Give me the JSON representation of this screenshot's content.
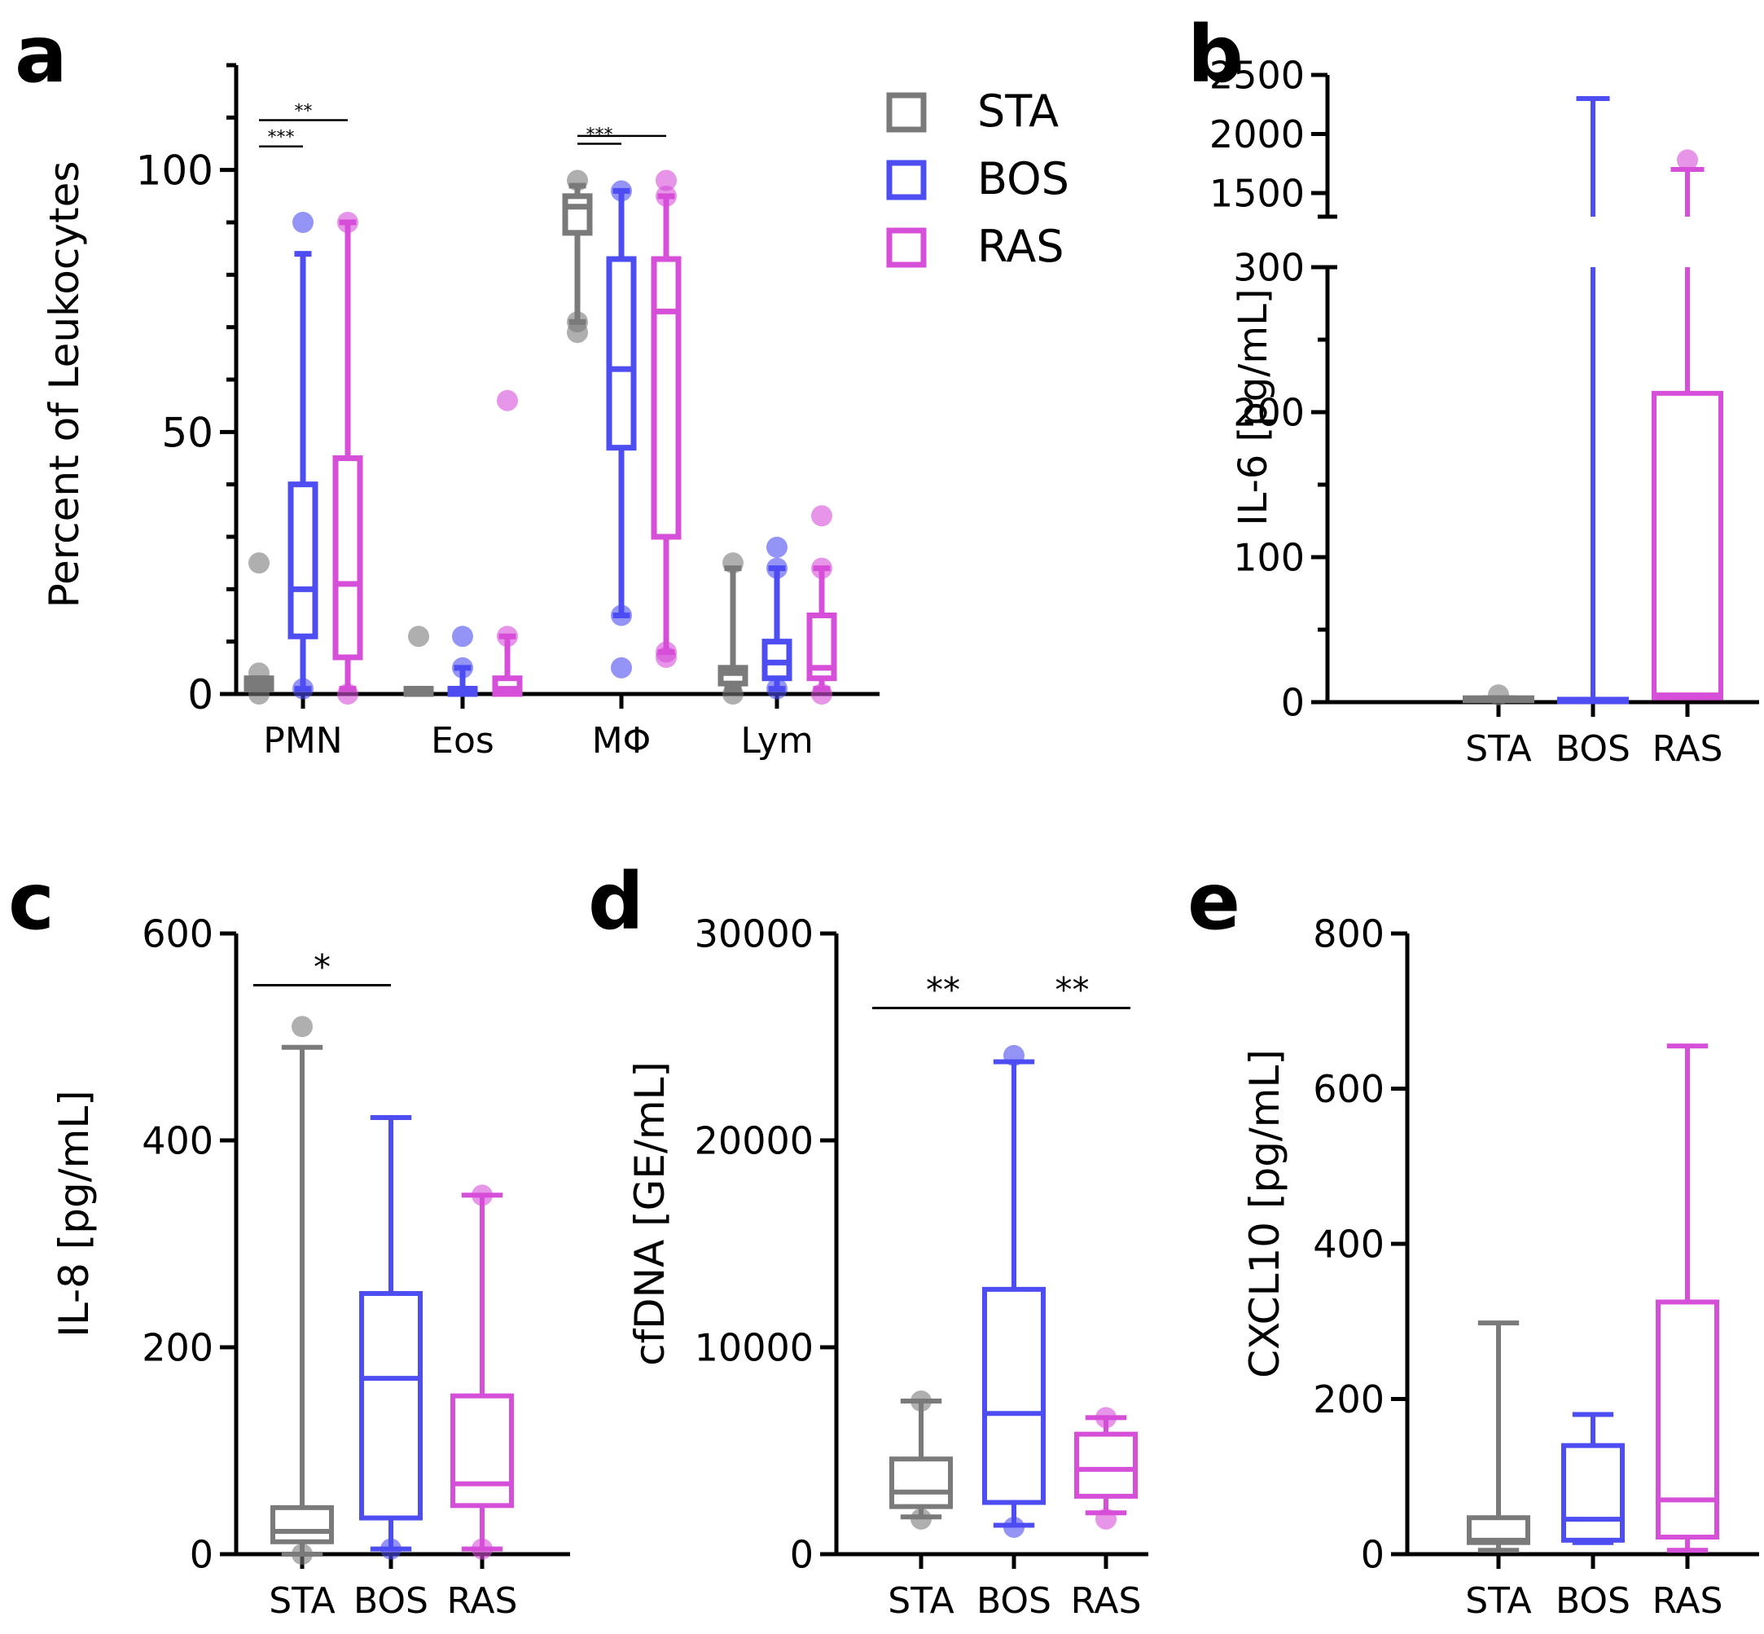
{
  "colors": {
    "STA": "#7a7a7a",
    "BOS": "#4d4df2",
    "RAS": "#d64fd8",
    "axis": "#000000"
  },
  "legend": {
    "entries": [
      {
        "name": "STA",
        "color": "#7a7a7a"
      },
      {
        "name": "BOS",
        "color": "#4d4df2"
      },
      {
        "name": "RAS",
        "color": "#d64fd8"
      }
    ]
  },
  "chart_data": [
    {
      "id": "a",
      "panel_label": "a",
      "type": "box",
      "ylabel": "Percent of Leukocytes",
      "ylim": [
        0,
        120
      ],
      "yticks": [
        0,
        50,
        100
      ],
      "ytick_labels": [
        "0",
        "50",
        "100"
      ],
      "categories": [
        "PMN",
        "Eos",
        "MΦ",
        "Lym"
      ],
      "groups": [
        "STA",
        "BOS",
        "RAS"
      ],
      "boxes": [
        {
          "category": "PMN",
          "group": "STA",
          "wlo": 1,
          "q1": 1,
          "med": 2,
          "q3": 3,
          "whi": 3,
          "outliers": [
            25,
            4,
            0
          ]
        },
        {
          "category": "PMN",
          "group": "BOS",
          "wlo": 1,
          "q1": 11,
          "med": 20,
          "q3": 40,
          "whi": 84,
          "outliers": [
            90,
            1
          ]
        },
        {
          "category": "PMN",
          "group": "RAS",
          "wlo": 1,
          "q1": 7,
          "med": 21,
          "q3": 45,
          "whi": 90,
          "outliers": [
            90,
            0
          ]
        },
        {
          "category": "Eos",
          "group": "STA",
          "wlo": 0,
          "q1": 0,
          "med": 0.5,
          "q3": 1,
          "whi": 1,
          "outliers": [
            11
          ]
        },
        {
          "category": "Eos",
          "group": "BOS",
          "wlo": 0,
          "q1": 0,
          "med": 1,
          "q3": 1,
          "whi": 5,
          "outliers": [
            11,
            5
          ]
        },
        {
          "category": "Eos",
          "group": "RAS",
          "wlo": 0,
          "q1": 0,
          "med": 1,
          "q3": 3,
          "whi": 11,
          "outliers": [
            56,
            11
          ]
        },
        {
          "category": "MΦ",
          "group": "STA",
          "wlo": 71,
          "q1": 88,
          "med": 93,
          "q3": 95,
          "whi": 97,
          "outliers": [
            98,
            71,
            69
          ]
        },
        {
          "category": "MΦ",
          "group": "BOS",
          "wlo": 15,
          "q1": 47,
          "med": 62,
          "q3": 83,
          "whi": 96,
          "outliers": [
            96,
            15,
            5
          ]
        },
        {
          "category": "MΦ",
          "group": "RAS",
          "wlo": 8,
          "q1": 30,
          "med": 73,
          "q3": 83,
          "whi": 95,
          "outliers": [
            98,
            95,
            8,
            7
          ]
        },
        {
          "category": "Lym",
          "group": "STA",
          "wlo": 1,
          "q1": 2,
          "med": 4,
          "q3": 5,
          "whi": 24,
          "outliers": [
            25,
            0
          ]
        },
        {
          "category": "Lym",
          "group": "BOS",
          "wlo": 1,
          "q1": 3,
          "med": 6,
          "q3": 10,
          "whi": 24,
          "outliers": [
            28,
            24,
            1
          ]
        },
        {
          "category": "Lym",
          "group": "RAS",
          "wlo": 1,
          "q1": 3,
          "med": 5,
          "q3": 15,
          "whi": 24,
          "outliers": [
            34,
            24,
            0
          ]
        }
      ],
      "significance": [
        {
          "category": "PMN",
          "from": "STA",
          "to": "BOS",
          "label": "***",
          "y": 104.5
        },
        {
          "category": "PMN",
          "from": "STA",
          "to": "RAS",
          "label": "**",
          "y": 109.5
        },
        {
          "category": "MΦ",
          "from": "STA",
          "to": "BOS",
          "label": "***",
          "y": 105
        },
        {
          "category": "MΦ",
          "from": "STA",
          "to": "RAS",
          "label": "",
          "y": 106.5
        }
      ]
    },
    {
      "id": "b",
      "panel_label": "b",
      "type": "box",
      "ylabel": "IL-6 [pg/mL]",
      "broken_axis": true,
      "ylim_lower": [
        0,
        300
      ],
      "ylim_upper": [
        1300,
        2500
      ],
      "yticks": [
        0,
        100,
        200,
        300,
        1500,
        2000,
        2500
      ],
      "ytick_labels": [
        "0",
        "100",
        "200",
        "300",
        "1500",
        "2000",
        "2500"
      ],
      "categories": [
        "STA",
        "BOS",
        "RAS"
      ],
      "boxes": [
        {
          "group": "STA",
          "wlo": 1,
          "q1": 1,
          "med": 2,
          "q3": 3,
          "whi": 3,
          "outliers": [
            5
          ]
        },
        {
          "group": "BOS",
          "wlo": 0,
          "q1": 1,
          "med": 2,
          "q3": 2,
          "whi": 2300,
          "outliers": []
        },
        {
          "group": "RAS",
          "wlo": 2,
          "q1": 3,
          "med": 5,
          "q3": 213,
          "whi": 1700,
          "outliers": [
            1780
          ]
        }
      ],
      "significance": []
    },
    {
      "id": "c",
      "panel_label": "c",
      "type": "box",
      "ylabel": "IL-8 [pg/mL]",
      "ylim": [
        0,
        600
      ],
      "yticks": [
        0,
        200,
        400,
        600
      ],
      "ytick_labels": [
        "0",
        "200",
        "400",
        "600"
      ],
      "categories": [
        "STA",
        "BOS",
        "RAS"
      ],
      "boxes": [
        {
          "group": "STA",
          "wlo": 0,
          "q1": 12,
          "med": 22,
          "q3": 45,
          "whi": 490,
          "outliers": [
            510,
            0
          ]
        },
        {
          "group": "BOS",
          "wlo": 5,
          "q1": 35,
          "med": 170,
          "q3": 252,
          "whi": 422,
          "outliers": [
            5
          ]
        },
        {
          "group": "RAS",
          "wlo": 5,
          "q1": 47,
          "med": 68,
          "q3": 153,
          "whi": 347,
          "outliers": [
            347,
            5
          ]
        }
      ],
      "significance": [
        {
          "from": "STA",
          "to": "BOS",
          "label": "*",
          "y": 550
        }
      ]
    },
    {
      "id": "d",
      "panel_label": "d",
      "type": "box",
      "ylabel": "cfDNA [GE/mL]",
      "ylim": [
        0,
        30000
      ],
      "yticks": [
        0,
        10000,
        20000,
        30000
      ],
      "ytick_labels": [
        "0",
        "10000",
        "20000",
        "30000"
      ],
      "categories": [
        "STA",
        "BOS",
        "RAS"
      ],
      "boxes": [
        {
          "group": "STA",
          "wlo": 1800,
          "q1": 2300,
          "med": 3000,
          "q3": 4600,
          "whi": 7400,
          "outliers": [
            7400,
            1700
          ]
        },
        {
          "group": "BOS",
          "wlo": 1400,
          "q1": 2500,
          "med": 6800,
          "q3": 12800,
          "whi": 23800,
          "outliers": [
            24100,
            1300
          ]
        },
        {
          "group": "RAS",
          "wlo": 2000,
          "q1": 2800,
          "med": 4100,
          "q3": 5800,
          "whi": 6600,
          "outliers": [
            6600,
            1700
          ]
        }
      ],
      "significance": [
        {
          "from": "STA",
          "to": "BOS",
          "label": "**",
          "y": 26400
        },
        {
          "from": "BOS",
          "to": "RAS",
          "label": "**",
          "y": 26400
        }
      ]
    },
    {
      "id": "e",
      "panel_label": "e",
      "type": "box",
      "ylabel": "CXCL10 [pg/mL]",
      "ylim": [
        0,
        800
      ],
      "yticks": [
        0,
        200,
        400,
        600,
        800
      ],
      "ytick_labels": [
        "0",
        "200",
        "400",
        "600",
        "800"
      ],
      "categories": [
        "STA",
        "BOS",
        "RAS"
      ],
      "boxes": [
        {
          "group": "STA",
          "wlo": 5,
          "q1": 15,
          "med": 18,
          "q3": 47,
          "whi": 298,
          "outliers": []
        },
        {
          "group": "BOS",
          "wlo": 15,
          "q1": 18,
          "med": 45,
          "q3": 140,
          "whi": 180,
          "outliers": []
        },
        {
          "group": "RAS",
          "wlo": 5,
          "q1": 22,
          "med": 70,
          "q3": 325,
          "whi": 655,
          "outliers": []
        }
      ],
      "significance": []
    }
  ]
}
